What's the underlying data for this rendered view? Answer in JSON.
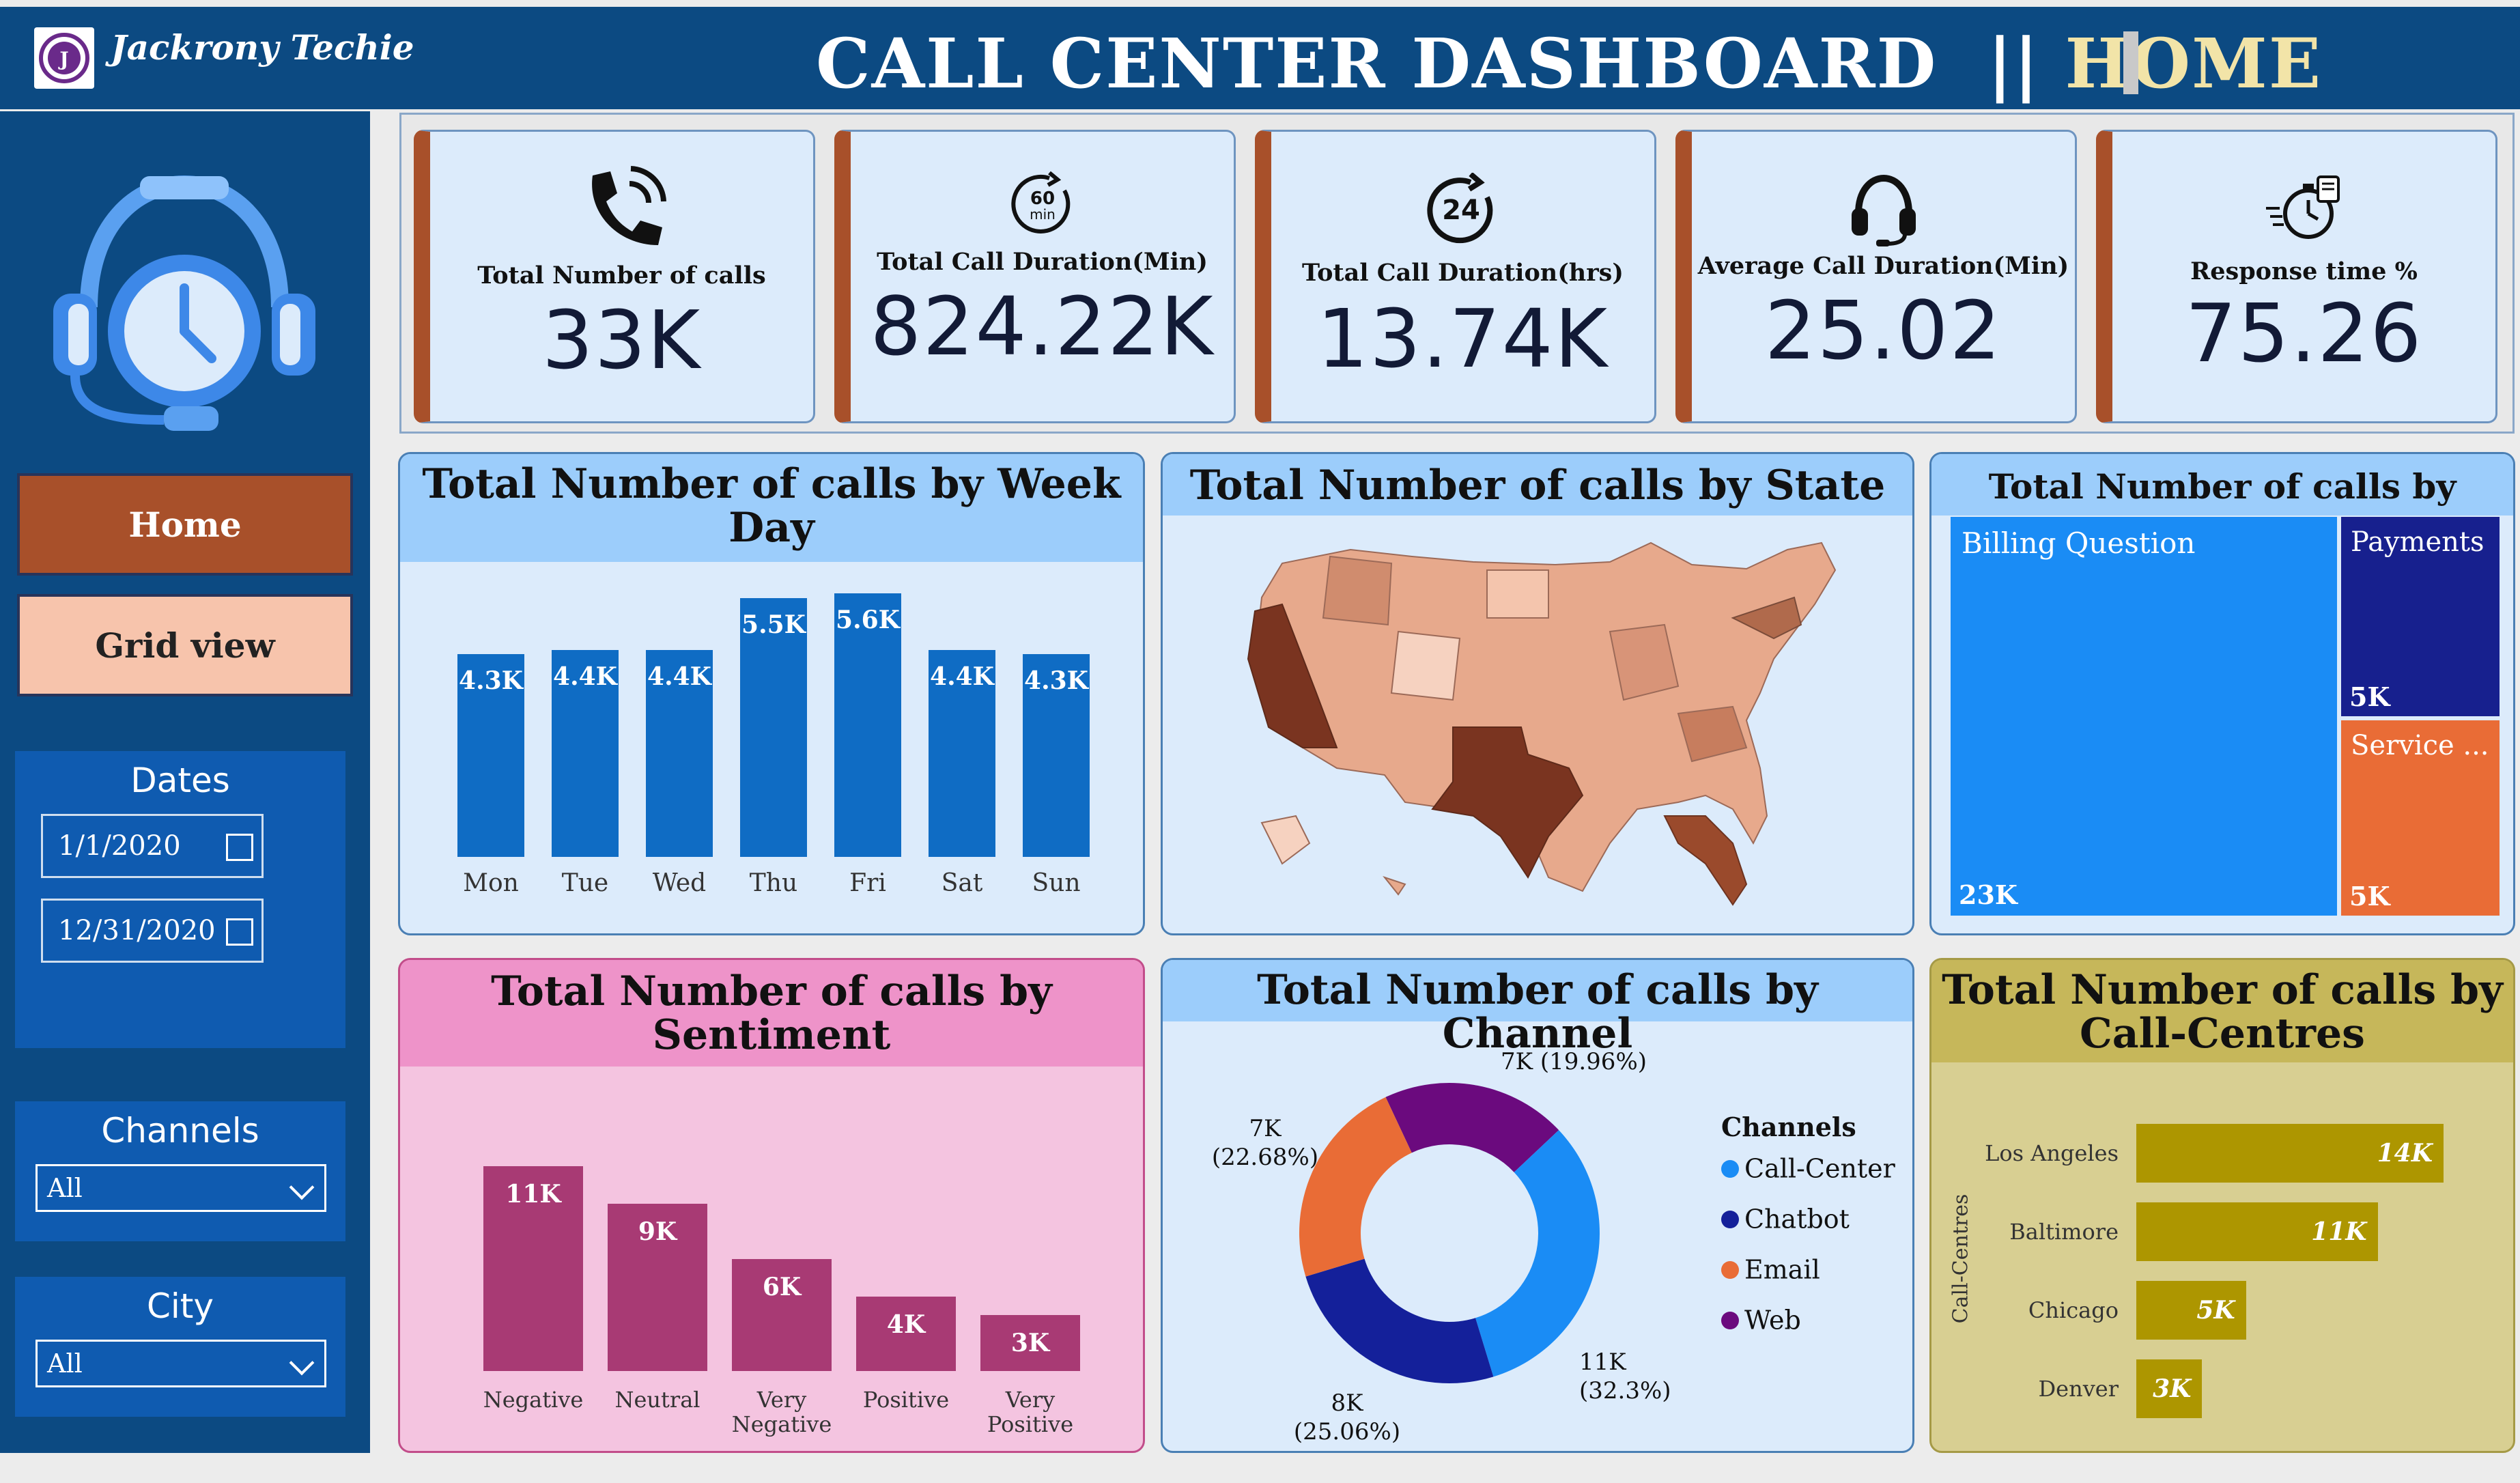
{
  "header": {
    "brand": "Jackrony Techie",
    "title_main": "CALL CENTER DASHBOARD",
    "title_sep": "||",
    "title_page": "HOME"
  },
  "sidebar": {
    "home_label": "Home",
    "grid_label": "Grid view",
    "dates": {
      "title": "Dates",
      "start": "1/1/2020",
      "end": "12/31/2020"
    },
    "channels": {
      "title": "Channels",
      "value": "All"
    },
    "city": {
      "title": "City",
      "value": "All"
    }
  },
  "kpis": [
    {
      "label": "Total Number of calls",
      "value": "33K",
      "icon": "phone-icon"
    },
    {
      "label": "Total Call Duration(Min)",
      "value": "824.22K",
      "icon": "timer-60-icon",
      "icon_text": "60\nmin"
    },
    {
      "label": "Total Call Duration(hrs)",
      "value": "13.74K",
      "icon": "clock-24-icon",
      "icon_text": "24"
    },
    {
      "label": "Average Call Duration(Min)",
      "value": "25.02",
      "icon": "headset-icon"
    },
    {
      "label": "Response time %",
      "value": "75.26",
      "icon": "stopwatch-icon"
    }
  ],
  "weekday": {
    "title": "Total Number of calls by Week Day",
    "chart_data": {
      "type": "bar",
      "categories": [
        "Mon",
        "Tue",
        "Wed",
        "Thu",
        "Fri",
        "Sat",
        "Sun"
      ],
      "values": [
        4.3,
        4.4,
        4.4,
        5.5,
        5.6,
        4.4,
        4.3
      ],
      "labels": [
        "4.3K",
        "4.4K",
        "4.4K",
        "5.5K",
        "5.6K",
        "4.4K",
        "4.3K"
      ],
      "color": "#0f6cc4"
    }
  },
  "state": {
    "title": "Total Number of calls by State",
    "map": "us-states-choropleth"
  },
  "reason": {
    "title": "Total Number of calls by Reason",
    "chart_data": {
      "type": "treemap",
      "items": [
        {
          "name": "Billing Question",
          "label": "23K",
          "color": "#1a8cf5"
        },
        {
          "name": "Payments",
          "label": "5K",
          "color": "#17208e"
        },
        {
          "name": "Service ...",
          "label": "5K",
          "color": "#e96c36"
        }
      ]
    }
  },
  "sentiment": {
    "title": "Total Number of calls by Sentiment",
    "chart_data": {
      "type": "bar",
      "categories": [
        "Negative",
        "Neutral",
        "Very Negative",
        "Positive",
        "Very Positive"
      ],
      "values": [
        11,
        9,
        6,
        4,
        3
      ],
      "labels": [
        "11K",
        "9K",
        "6K",
        "4K",
        "3K"
      ],
      "color": "#a83a74"
    }
  },
  "channel": {
    "title": "Total Number of calls by Channel",
    "legend_title": "Channels",
    "chart_data": {
      "type": "pie",
      "donut": true,
      "slices": [
        {
          "name": "Call-Center",
          "value": 32.3,
          "label_top": "11K",
          "label_bot": "(32.3%)",
          "color": "#1a8cf5"
        },
        {
          "name": "Chatbot",
          "value": 25.06,
          "label_top": "8K",
          "label_bot": "(25.06%)",
          "color": "#14209a"
        },
        {
          "name": "Email",
          "value": 22.68,
          "label_top": "7K",
          "label_bot": "(22.68%)",
          "color": "#e96c36"
        },
        {
          "name": "Web",
          "value": 19.96,
          "label_top": "7K (19.96%)",
          "label_bot": "",
          "color": "#6b0a7e"
        }
      ]
    }
  },
  "centres": {
    "title": "Total Number of calls by Call-Centres",
    "ylabel": "Call-Centres",
    "chart_data": {
      "type": "bar",
      "orientation": "horizontal",
      "categories": [
        "Los Angeles",
        "Baltimore",
        "Chicago",
        "Denver"
      ],
      "values": [
        14,
        11,
        5,
        3
      ],
      "labels": [
        "14K",
        "11K",
        "5K",
        "3K"
      ],
      "color": "#ad9600"
    }
  }
}
